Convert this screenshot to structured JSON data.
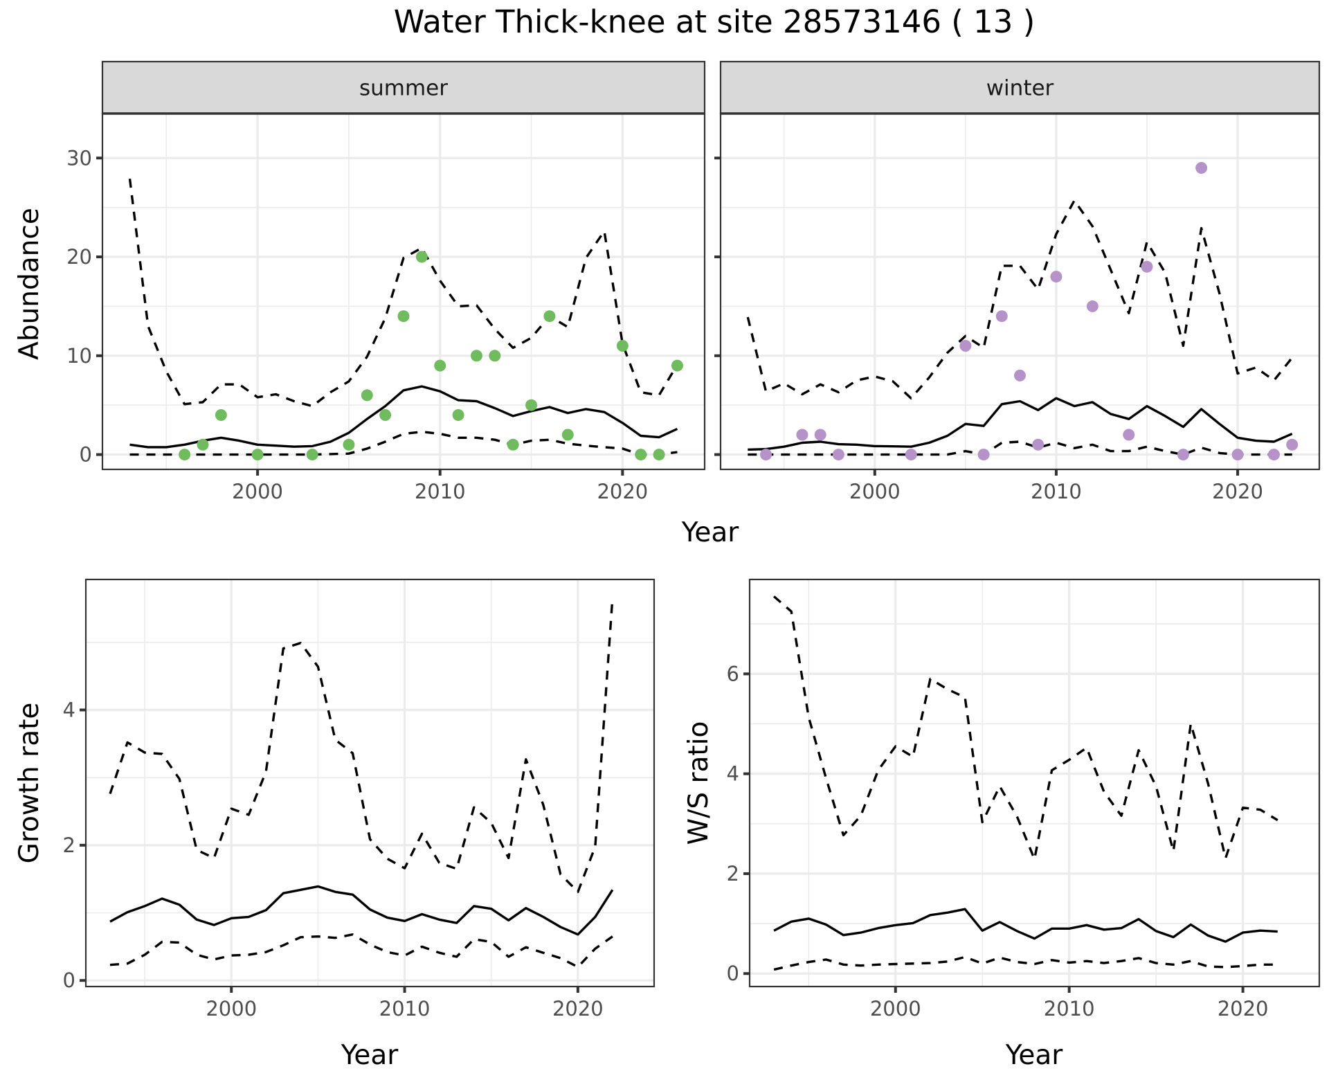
{
  "figure": {
    "title": "Water Thick-knee at site 28573146 ( 13 )"
  },
  "chart_data": [
    {
      "id": "abundance-summer",
      "type": "scatter",
      "facet": "summer",
      "title": "summer",
      "xlabel": "Year",
      "ylabel": "Abundance",
      "xlim": [
        1991.5,
        2024.5
      ],
      "ylim": [
        -1.5,
        34.5
      ],
      "xticks": [
        2000,
        2010,
        2020
      ],
      "xtick_labels": [
        "2000",
        "2010",
        "2020"
      ],
      "xminor": [
        1995,
        2005,
        2015
      ],
      "yticks": [
        0,
        10,
        20,
        30
      ],
      "ytick_labels": [
        "0",
        "10",
        "20",
        "30"
      ],
      "yminor": [
        5,
        15,
        25
      ],
      "grid": true,
      "point_color": "#6fbb5e",
      "points": {
        "x": [
          1996,
          1997,
          1998,
          2000,
          2003,
          2005,
          2006,
          2007,
          2008,
          2009,
          2010,
          2011,
          2012,
          2013,
          2014,
          2015,
          2016,
          2017,
          2020,
          2021,
          2022,
          2023
        ],
        "y": [
          0,
          1,
          4,
          0,
          0,
          1,
          6,
          4,
          14,
          20,
          9,
          4,
          10,
          10,
          1,
          5,
          14,
          2,
          11,
          0,
          0,
          9
        ]
      },
      "years": [
        1993,
        1994,
        1995,
        1996,
        1997,
        1998,
        1999,
        2000,
        2001,
        2002,
        2003,
        2004,
        2005,
        2006,
        2007,
        2008,
        2009,
        2010,
        2011,
        2012,
        2013,
        2014,
        2015,
        2016,
        2017,
        2018,
        2019,
        2020,
        2021,
        2022,
        2023
      ],
      "series": [
        {
          "name": "mean",
          "style": "solid",
          "values": [
            1.0,
            0.75,
            0.75,
            1.0,
            1.4,
            1.7,
            1.4,
            1.0,
            0.9,
            0.8,
            0.85,
            1.3,
            2.2,
            3.6,
            4.9,
            6.5,
            6.9,
            6.4,
            5.5,
            5.4,
            4.7,
            3.9,
            4.4,
            4.8,
            4.2,
            4.6,
            4.3,
            3.2,
            1.9,
            1.75,
            2.6
          ]
        },
        {
          "name": "upper",
          "style": "dashed",
          "values": [
            27.9,
            13.0,
            8.4,
            5.1,
            5.3,
            7.1,
            7.1,
            5.8,
            6.1,
            5.4,
            4.9,
            6.3,
            7.4,
            9.9,
            13.8,
            19.9,
            20.9,
            17.6,
            15.0,
            15.1,
            12.7,
            10.8,
            11.8,
            14.0,
            12.9,
            19.9,
            22.6,
            11.2,
            6.3,
            6.0,
            9.1
          ]
        },
        {
          "name": "lower",
          "style": "dashed",
          "values": [
            0,
            0,
            0,
            0,
            0,
            0,
            0,
            0,
            0,
            0,
            0,
            0.05,
            0.1,
            0.6,
            1.3,
            2.1,
            2.3,
            2.1,
            1.7,
            1.7,
            1.5,
            1.0,
            1.4,
            1.5,
            1.1,
            0.9,
            0.75,
            0.6,
            0,
            0,
            0.25
          ]
        }
      ]
    },
    {
      "id": "abundance-winter",
      "type": "scatter",
      "facet": "winter",
      "title": "winter",
      "xlabel": "Year",
      "ylabel": "Abundance",
      "xlim": [
        1991.5,
        2024.5
      ],
      "ylim": [
        -1.5,
        34.5
      ],
      "xticks": [
        2000,
        2010,
        2020
      ],
      "xtick_labels": [
        "2000",
        "2010",
        "2020"
      ],
      "xminor": [
        1995,
        2005,
        2015
      ],
      "yticks": [
        0,
        10,
        20,
        30
      ],
      "ytick_labels": [],
      "yminor": [
        5,
        15,
        25
      ],
      "grid": true,
      "point_color": "#b592c8",
      "points": {
        "x": [
          1994,
          1996,
          1997,
          1998,
          2002,
          2005,
          2006,
          2007,
          2008,
          2009,
          2010,
          2012,
          2014,
          2015,
          2017,
          2018,
          2020,
          2022,
          2023
        ],
        "y": [
          0,
          2,
          2,
          0,
          0,
          11,
          0,
          14,
          8,
          1,
          18,
          15,
          2,
          19,
          0,
          29,
          0,
          0,
          1
        ]
      },
      "years": [
        1993,
        1994,
        1995,
        1996,
        1997,
        1998,
        1999,
        2000,
        2001,
        2002,
        2003,
        2004,
        2005,
        2006,
        2007,
        2008,
        2009,
        2010,
        2011,
        2012,
        2013,
        2014,
        2015,
        2016,
        2017,
        2018,
        2019,
        2020,
        2021,
        2022,
        2023
      ],
      "series": [
        {
          "name": "mean",
          "style": "solid",
          "values": [
            0.5,
            0.55,
            0.8,
            1.2,
            1.3,
            1.05,
            1.0,
            0.85,
            0.83,
            0.8,
            1.2,
            1.9,
            3.1,
            2.9,
            5.1,
            5.4,
            4.5,
            5.7,
            4.9,
            5.3,
            4.1,
            3.6,
            4.9,
            3.9,
            2.8,
            4.6,
            3.1,
            1.7,
            1.4,
            1.3,
            2.1
          ]
        },
        {
          "name": "upper",
          "style": "dashed",
          "values": [
            13.9,
            6.4,
            7.2,
            6.1,
            7.1,
            6.3,
            7.5,
            7.9,
            7.4,
            5.7,
            7.8,
            10.3,
            12.0,
            10.8,
            19.1,
            19.1,
            16.7,
            22.3,
            25.7,
            23.1,
            18.7,
            14.3,
            21.5,
            18.4,
            11.0,
            22.9,
            16.3,
            8.2,
            8.8,
            7.5,
            9.8
          ]
        },
        {
          "name": "lower",
          "style": "dashed",
          "values": [
            0,
            0,
            0,
            0,
            0,
            0,
            0,
            0,
            0,
            0,
            0,
            0,
            0.35,
            0,
            1.2,
            1.3,
            0.7,
            1.2,
            0.65,
            1.0,
            0.35,
            0.35,
            0.8,
            0.35,
            0,
            0.7,
            0.15,
            0,
            0,
            0,
            0
          ]
        }
      ]
    },
    {
      "id": "growth-rate",
      "type": "line",
      "title": "",
      "xlabel": "Year",
      "ylabel": "Growth rate",
      "xlim": [
        1991.6,
        2024.4
      ],
      "ylim": [
        -0.09,
        5.93
      ],
      "xticks": [
        2000,
        2010,
        2020
      ],
      "xtick_labels": [
        "2000",
        "2010",
        "2020"
      ],
      "xminor": [
        1995,
        2005,
        2015
      ],
      "yticks": [
        0,
        2,
        4
      ],
      "ytick_labels": [
        "0",
        "2",
        "4"
      ],
      "yminor": [
        1,
        3,
        5
      ],
      "grid": true,
      "years": [
        1993,
        1994,
        1995,
        1996,
        1997,
        1998,
        1999,
        2000,
        2001,
        2002,
        2003,
        2004,
        2005,
        2006,
        2007,
        2008,
        2009,
        2010,
        2011,
        2012,
        2013,
        2014,
        2015,
        2016,
        2017,
        2018,
        2019,
        2020,
        2021,
        2022
      ],
      "series": [
        {
          "name": "mean",
          "style": "solid",
          "values": [
            0.87,
            1.01,
            1.1,
            1.21,
            1.12,
            0.9,
            0.82,
            0.92,
            0.94,
            1.04,
            1.29,
            1.34,
            1.39,
            1.31,
            1.27,
            1.05,
            0.93,
            0.88,
            0.98,
            0.9,
            0.85,
            1.1,
            1.06,
            0.89,
            1.07,
            0.94,
            0.79,
            0.68,
            0.94,
            1.34
          ]
        },
        {
          "name": "upper",
          "style": "dashed",
          "values": [
            2.76,
            3.52,
            3.37,
            3.35,
            2.98,
            1.93,
            1.81,
            2.54,
            2.45,
            3.09,
            4.91,
            4.99,
            4.64,
            3.56,
            3.36,
            2.09,
            1.8,
            1.66,
            2.17,
            1.74,
            1.65,
            2.56,
            2.33,
            1.81,
            3.27,
            2.6,
            1.57,
            1.31,
            1.98,
            5.66
          ]
        },
        {
          "name": "lower",
          "style": "dashed",
          "values": [
            0.23,
            0.25,
            0.38,
            0.57,
            0.56,
            0.38,
            0.31,
            0.37,
            0.38,
            0.42,
            0.52,
            0.64,
            0.65,
            0.63,
            0.68,
            0.53,
            0.42,
            0.37,
            0.5,
            0.41,
            0.35,
            0.61,
            0.57,
            0.35,
            0.49,
            0.41,
            0.33,
            0.2,
            0.47,
            0.65
          ]
        }
      ]
    },
    {
      "id": "ws-ratio",
      "type": "line",
      "title": "",
      "xlabel": "Year",
      "ylabel": "W/S ratio",
      "xlim": [
        1991.6,
        2024.4
      ],
      "ylim": [
        -0.26,
        7.89
      ],
      "xticks": [
        2000,
        2010,
        2020
      ],
      "xtick_labels": [
        "2000",
        "2010",
        "2020"
      ],
      "xminor": [
        1995,
        2005,
        2015
      ],
      "yticks": [
        0,
        2,
        4,
        6
      ],
      "ytick_labels": [
        "0",
        "2",
        "4",
        "6"
      ],
      "yminor": [
        1,
        3,
        5,
        7
      ],
      "grid": true,
      "years": [
        1993,
        1994,
        1995,
        1996,
        1997,
        1998,
        1999,
        2000,
        2001,
        2002,
        2003,
        2004,
        2005,
        2006,
        2007,
        2008,
        2009,
        2010,
        2011,
        2012,
        2013,
        2014,
        2015,
        2016,
        2017,
        2018,
        2019,
        2020,
        2021,
        2022
      ],
      "series": [
        {
          "name": "mean",
          "style": "solid",
          "values": [
            0.86,
            1.04,
            1.1,
            0.98,
            0.77,
            0.82,
            0.91,
            0.97,
            1.01,
            1.17,
            1.22,
            1.29,
            0.86,
            1.03,
            0.85,
            0.7,
            0.9,
            0.9,
            0.97,
            0.88,
            0.91,
            1.09,
            0.85,
            0.73,
            0.98,
            0.76,
            0.64,
            0.82,
            0.86,
            0.84
          ]
        },
        {
          "name": "upper",
          "style": "dashed",
          "values": [
            7.55,
            7.25,
            5.13,
            3.91,
            2.77,
            3.16,
            4.07,
            4.55,
            4.34,
            5.9,
            5.69,
            5.53,
            3.03,
            3.75,
            3.14,
            2.29,
            4.07,
            4.28,
            4.52,
            3.64,
            3.16,
            4.47,
            3.75,
            2.45,
            5.0,
            3.8,
            2.31,
            3.32,
            3.28,
            3.07
          ]
        },
        {
          "name": "lower",
          "style": "dashed",
          "values": [
            0.08,
            0.16,
            0.23,
            0.28,
            0.18,
            0.16,
            0.18,
            0.19,
            0.2,
            0.21,
            0.24,
            0.33,
            0.2,
            0.32,
            0.23,
            0.19,
            0.27,
            0.22,
            0.25,
            0.21,
            0.25,
            0.31,
            0.21,
            0.18,
            0.25,
            0.14,
            0.13,
            0.15,
            0.18,
            0.18
          ]
        }
      ]
    }
  ]
}
